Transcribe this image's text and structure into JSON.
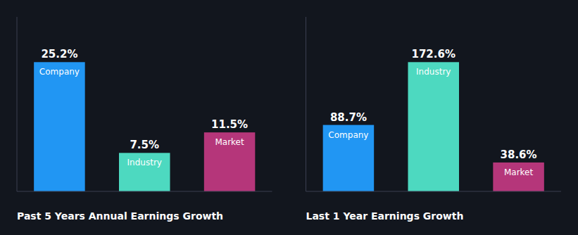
{
  "chart_data": [
    {
      "type": "bar",
      "title": "Past 5 Years Annual Earnings Growth",
      "categories": [
        "Company",
        "Industry",
        "Market"
      ],
      "values": [
        25.2,
        7.5,
        11.5
      ],
      "value_labels": [
        "25.2%",
        "7.5%",
        "11.5%"
      ],
      "colors": [
        "#2196f3",
        "#4dd9c0",
        "#b5367a"
      ],
      "ylim": [
        0,
        34.02
      ],
      "yticks": [],
      "grid": false,
      "data_labels": true,
      "tick_labels": false
    },
    {
      "type": "bar",
      "title": "Last 1 Year Earnings Growth",
      "categories": [
        "Company",
        "Industry",
        "Market"
      ],
      "values": [
        88.7,
        172.6,
        38.6
      ],
      "value_labels": [
        "88.7%",
        "172.6%",
        "38.6%"
      ],
      "colors": [
        "#2196f3",
        "#4dd9c0",
        "#b5367a"
      ],
      "ylim": [
        0,
        233.01
      ],
      "yticks": [],
      "grid": false,
      "data_labels": true,
      "tick_labels": false
    }
  ]
}
